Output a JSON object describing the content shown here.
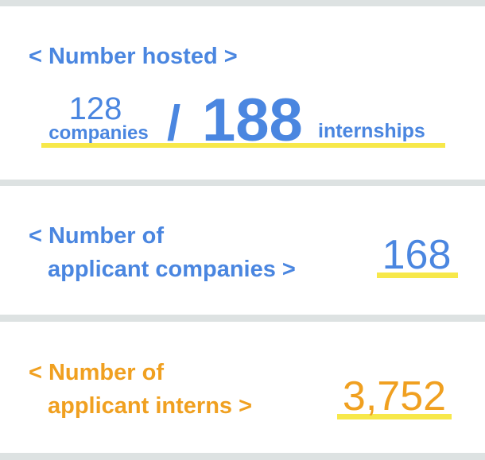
{
  "cards": [
    {
      "title": "< Number hosted >",
      "companies_count": "128",
      "companies_unit": "companies",
      "separator": "/",
      "internships_count": "188",
      "internships_unit": "internships"
    },
    {
      "title_lines": [
        "< Number of",
        "applicant companies >"
      ],
      "value": "168"
    },
    {
      "title_lines": [
        "< Number of",
        "applicant interns >"
      ],
      "value": "3,752"
    }
  ]
}
